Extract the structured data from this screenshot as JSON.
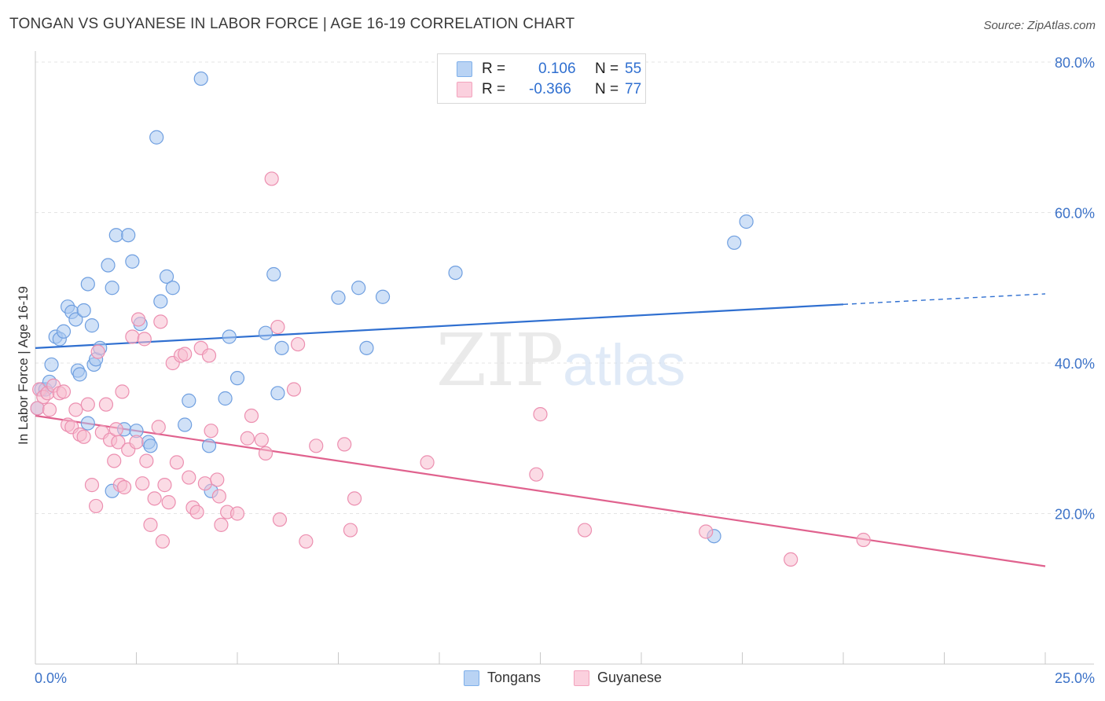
{
  "header": {
    "title": "TONGAN VS GUYANESE IN LABOR FORCE | AGE 16-19 CORRELATION CHART",
    "source": "Source: ZipAtlas.com"
  },
  "watermark": {
    "zip": "ZIP",
    "atlas": "atlas"
  },
  "stats": [
    {
      "r_label": "R =",
      "r_value": "0.106",
      "n_label": "N =",
      "n_value": "55",
      "color": "#7fb0ea"
    },
    {
      "r_label": "R =",
      "r_value": "-0.366",
      "n_label": "N =",
      "n_value": "77",
      "color": "#f3a3bd"
    }
  ],
  "legend": [
    {
      "label": "Tongans",
      "color": "#7fb0ea"
    },
    {
      "label": "Guyanese",
      "color": "#f3a3bd"
    }
  ],
  "colors": {
    "tongan_fill": "#a9c8f0",
    "tongan_stroke": "#6f9fe0",
    "tongan_line": "#2f6fd0",
    "guyanese_fill": "#f7bdd0",
    "guyanese_stroke": "#ec8fb0",
    "guyanese_line": "#e0628e",
    "axis_tick_text": "#3d73c8"
  },
  "chart_data": {
    "type": "scatter",
    "title": "TONGAN VS GUYANESE IN LABOR FORCE | AGE 16-19 CORRELATION CHART",
    "xlabel": "",
    "ylabel": "In Labor Force | Age 16-19",
    "xlim": [
      0,
      25
    ],
    "ylim": [
      0,
      82
    ],
    "x_tick_labels": [
      "0.0%",
      "25.0%"
    ],
    "y_ticks": [
      20,
      40,
      60,
      80
    ],
    "y_tick_labels": [
      "20.0%",
      "40.0%",
      "60.0%",
      "80.0%"
    ],
    "grid": true,
    "legend_position": "bottom-center",
    "series": [
      {
        "name": "Tongans",
        "r": 0.106,
        "n": 55,
        "trend": {
          "x": [
            0,
            20
          ],
          "y": [
            42.0,
            47.8
          ],
          "dashed_extension_to_x": 25,
          "dashed_extension_y": 49.2
        },
        "points": [
          [
            0.05,
            34.0
          ],
          [
            0.15,
            36.5
          ],
          [
            0.25,
            36.5
          ],
          [
            0.35,
            37.5
          ],
          [
            0.4,
            39.8
          ],
          [
            0.5,
            43.5
          ],
          [
            0.6,
            43.2
          ],
          [
            0.7,
            44.2
          ],
          [
            0.8,
            47.5
          ],
          [
            0.9,
            46.8
          ],
          [
            1.0,
            45.8
          ],
          [
            1.05,
            39.0
          ],
          [
            1.1,
            38.5
          ],
          [
            1.2,
            47.0
          ],
          [
            1.3,
            50.5
          ],
          [
            1.4,
            45.0
          ],
          [
            1.45,
            39.8
          ],
          [
            1.5,
            40.5
          ],
          [
            1.6,
            42.0
          ],
          [
            1.8,
            53.0
          ],
          [
            1.9,
            50.0
          ],
          [
            2.0,
            57.0
          ],
          [
            2.3,
            57.0
          ],
          [
            2.4,
            53.5
          ],
          [
            2.6,
            45.2
          ],
          [
            2.8,
            29.5
          ],
          [
            2.85,
            29.0
          ],
          [
            3.0,
            70.0
          ],
          [
            3.1,
            48.2
          ],
          [
            3.25,
            51.5
          ],
          [
            3.4,
            50.0
          ],
          [
            3.7,
            31.8
          ],
          [
            3.8,
            35.0
          ],
          [
            4.1,
            77.8
          ],
          [
            4.3,
            29.0
          ],
          [
            4.35,
            23.0
          ],
          [
            4.7,
            35.3
          ],
          [
            4.8,
            43.5
          ],
          [
            5.0,
            38.0
          ],
          [
            5.7,
            44.0
          ],
          [
            5.9,
            51.8
          ],
          [
            6.0,
            36.0
          ],
          [
            6.1,
            42.0
          ],
          [
            7.5,
            48.7
          ],
          [
            8.0,
            50.0
          ],
          [
            8.2,
            42.0
          ],
          [
            8.6,
            48.8
          ],
          [
            10.4,
            52.0
          ],
          [
            1.3,
            32.0
          ],
          [
            2.2,
            31.2
          ],
          [
            2.5,
            31.0
          ],
          [
            1.9,
            23.0
          ],
          [
            16.8,
            17.0
          ],
          [
            17.3,
            56.0
          ],
          [
            17.6,
            58.8
          ]
        ]
      },
      {
        "name": "Guyanese",
        "r": -0.366,
        "n": 77,
        "trend": {
          "x": [
            0,
            25
          ],
          "y": [
            33.0,
            13.0
          ]
        },
        "points": [
          [
            0.05,
            34.0
          ],
          [
            0.1,
            36.5
          ],
          [
            0.2,
            35.5
          ],
          [
            0.3,
            36.0
          ],
          [
            0.35,
            33.8
          ],
          [
            0.45,
            37.0
          ],
          [
            0.6,
            36.0
          ],
          [
            0.7,
            36.2
          ],
          [
            0.8,
            31.8
          ],
          [
            0.9,
            31.5
          ],
          [
            1.0,
            33.8
          ],
          [
            1.1,
            30.5
          ],
          [
            1.2,
            30.2
          ],
          [
            1.3,
            34.5
          ],
          [
            1.4,
            23.8
          ],
          [
            1.5,
            21.0
          ],
          [
            1.55,
            41.5
          ],
          [
            1.65,
            30.8
          ],
          [
            1.75,
            34.5
          ],
          [
            1.85,
            29.8
          ],
          [
            1.95,
            27.0
          ],
          [
            2.05,
            29.5
          ],
          [
            2.1,
            23.8
          ],
          [
            2.15,
            36.2
          ],
          [
            2.2,
            23.5
          ],
          [
            2.3,
            28.5
          ],
          [
            2.4,
            43.5
          ],
          [
            2.5,
            29.5
          ],
          [
            2.55,
            45.8
          ],
          [
            2.65,
            24.0
          ],
          [
            2.7,
            43.2
          ],
          [
            2.75,
            27.0
          ],
          [
            2.85,
            18.5
          ],
          [
            2.95,
            22.0
          ],
          [
            3.05,
            31.5
          ],
          [
            3.15,
            16.3
          ],
          [
            3.2,
            23.8
          ],
          [
            3.3,
            21.5
          ],
          [
            3.4,
            40.0
          ],
          [
            3.5,
            26.8
          ],
          [
            3.6,
            41.0
          ],
          [
            3.7,
            41.2
          ],
          [
            3.8,
            24.8
          ],
          [
            3.9,
            20.8
          ],
          [
            4.0,
            20.2
          ],
          [
            4.1,
            42.0
          ],
          [
            4.2,
            24.0
          ],
          [
            4.3,
            41.0
          ],
          [
            4.35,
            31.0
          ],
          [
            4.5,
            24.5
          ],
          [
            4.55,
            22.3
          ],
          [
            4.6,
            18.5
          ],
          [
            4.75,
            20.2
          ],
          [
            5.0,
            20.0
          ],
          [
            5.25,
            30.0
          ],
          [
            5.35,
            33.0
          ],
          [
            5.6,
            29.8
          ],
          [
            5.7,
            28.0
          ],
          [
            5.85,
            64.5
          ],
          [
            6.0,
            44.8
          ],
          [
            6.05,
            19.2
          ],
          [
            6.4,
            36.5
          ],
          [
            6.5,
            42.5
          ],
          [
            6.7,
            16.3
          ],
          [
            6.95,
            29.0
          ],
          [
            7.65,
            29.2
          ],
          [
            7.8,
            17.8
          ],
          [
            7.9,
            22.0
          ],
          [
            9.7,
            26.8
          ],
          [
            12.4,
            25.2
          ],
          [
            12.5,
            33.2
          ],
          [
            13.6,
            17.8
          ],
          [
            16.6,
            17.6
          ],
          [
            18.7,
            13.9
          ],
          [
            20.5,
            16.5
          ],
          [
            3.1,
            45.5
          ],
          [
            2.0,
            31.2
          ]
        ]
      }
    ]
  }
}
